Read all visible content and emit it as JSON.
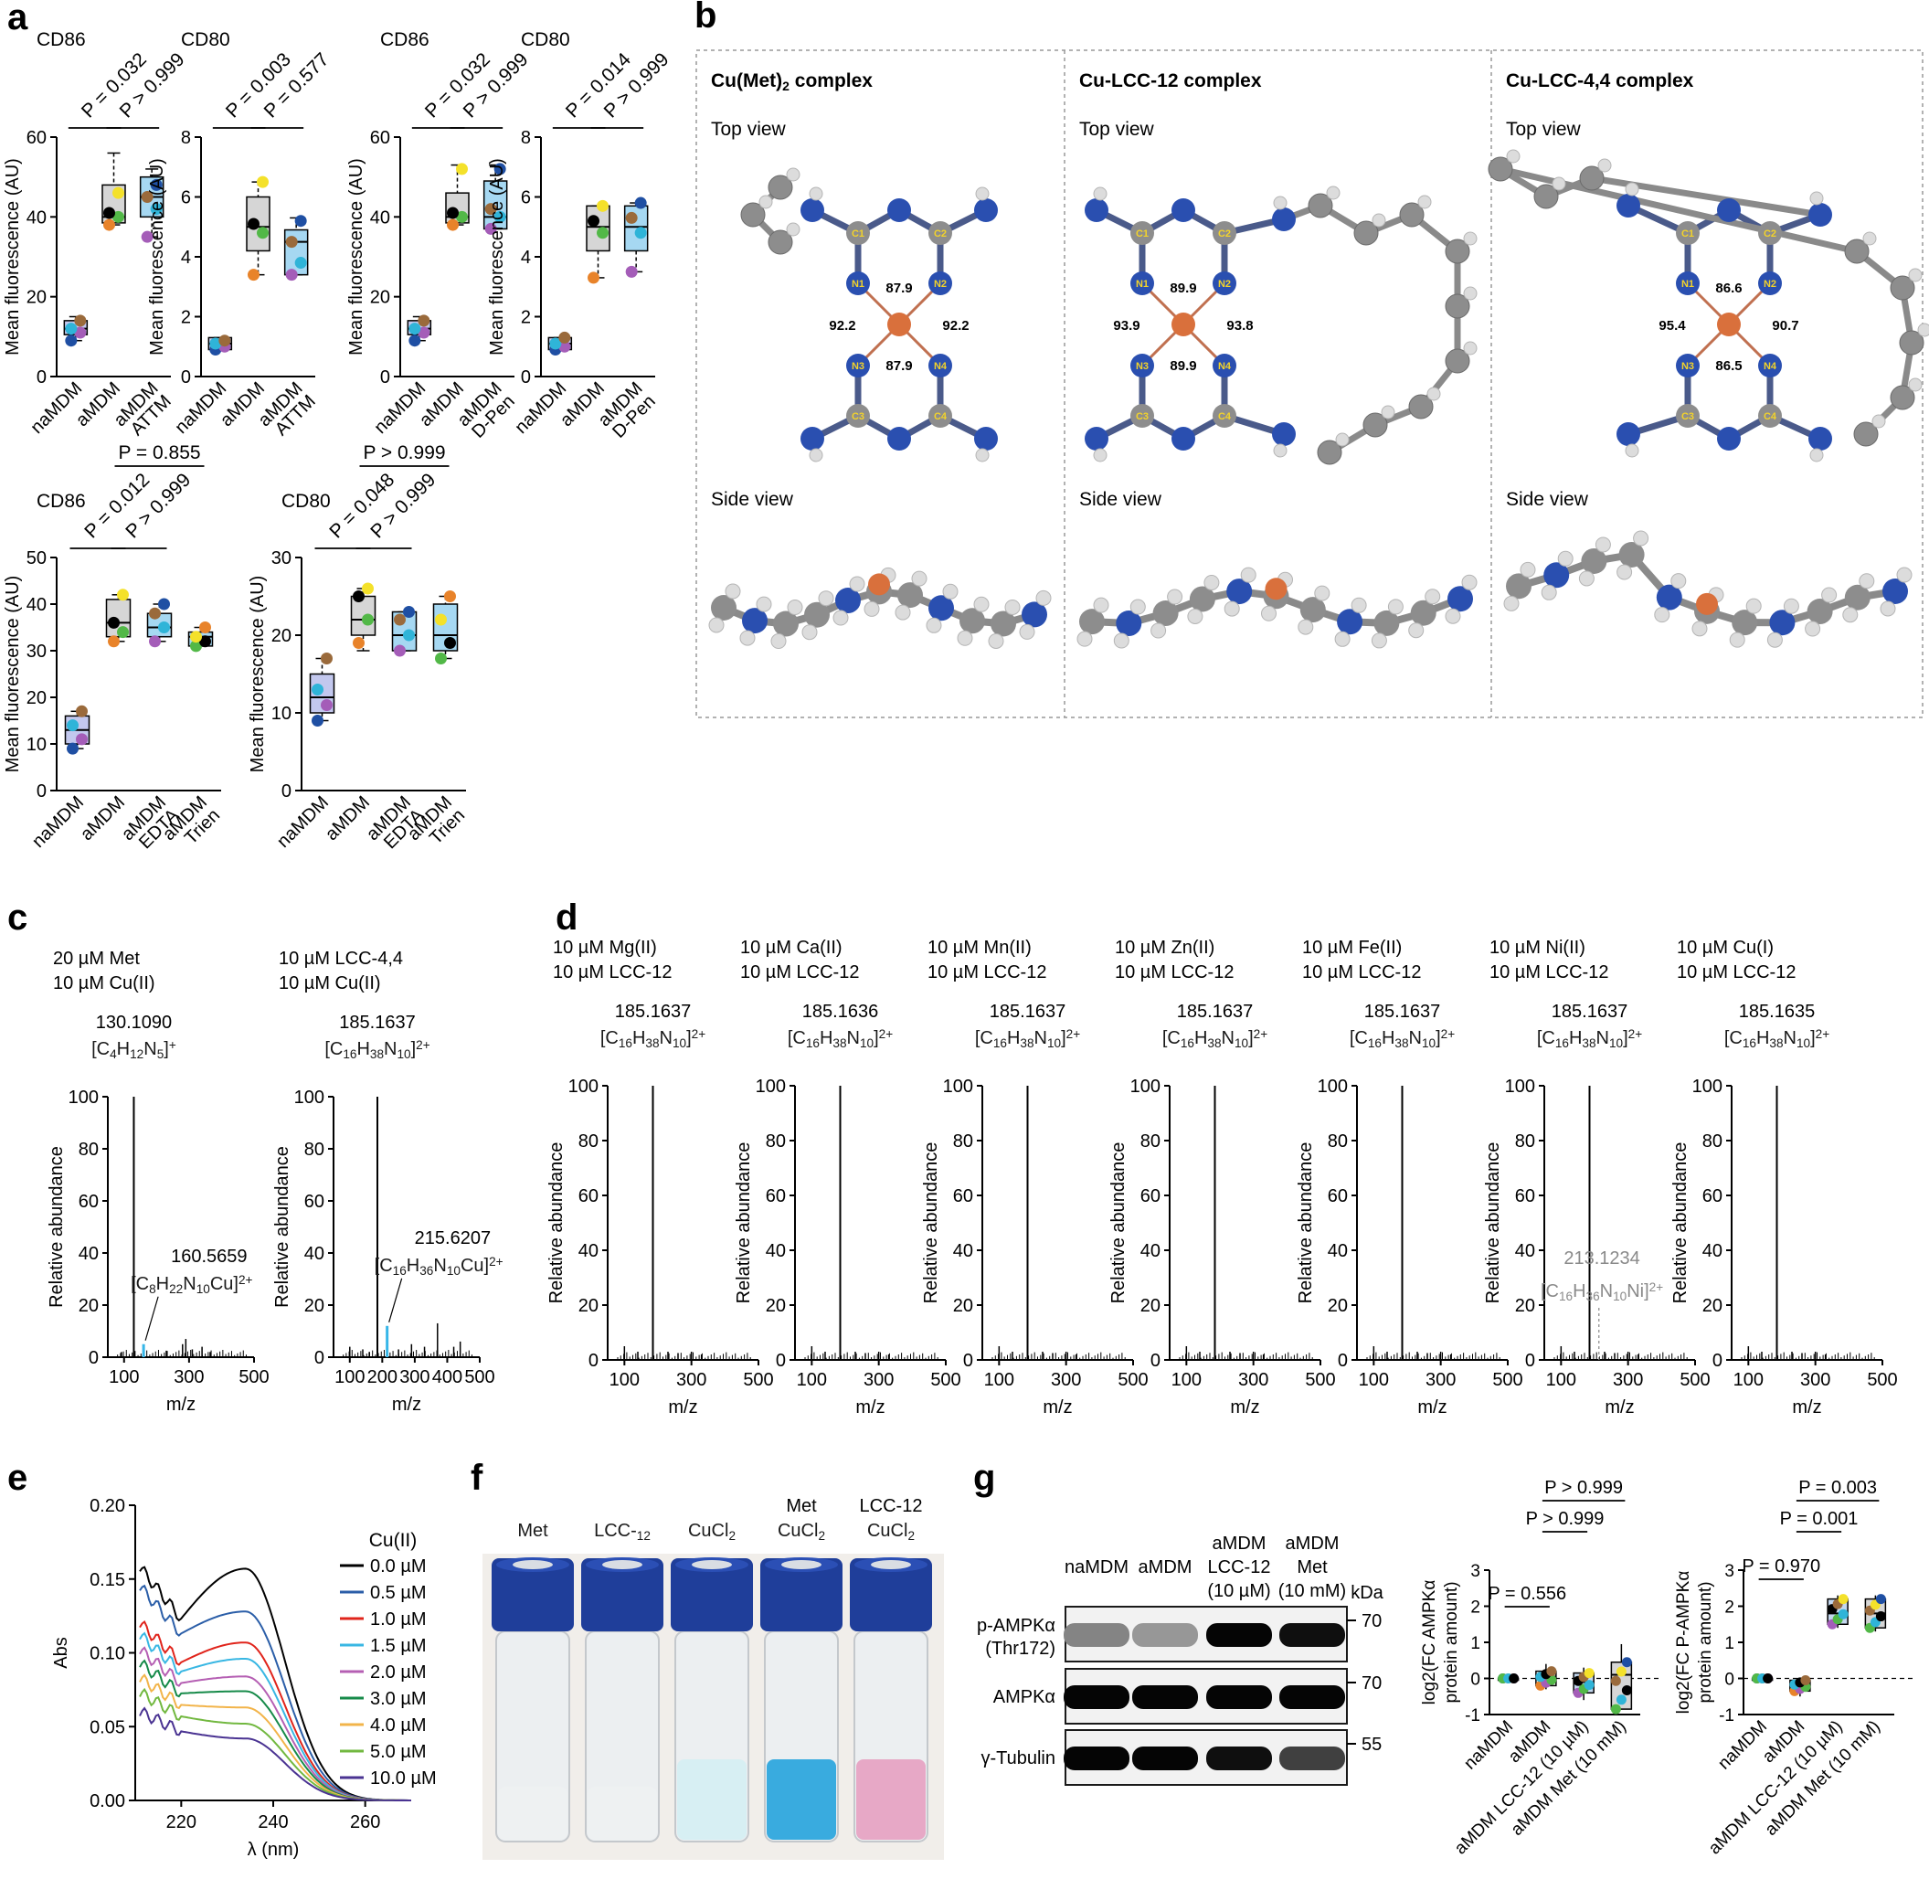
{
  "panels": {
    "a": {
      "label": "a",
      "ylabel": "Mean fluorescence (AU)",
      "plots": [
        {
          "title": "CD86",
          "ymax": 60,
          "ticks": [
            0,
            20,
            40,
            60
          ],
          "categories": [
            "naMDM",
            "aMDM",
            "aMDM ATTM"
          ],
          "medians": [
            12,
            40,
            45
          ],
          "q1": [
            10.5,
            38.5,
            40
          ],
          "q3": [
            14,
            48,
            50
          ],
          "min": [
            9,
            38,
            35
          ],
          "max": [
            15,
            56,
            52
          ],
          "points": [
            [
              9,
              11,
              12,
              14
            ],
            [
              38,
              40,
              41,
              46
            ],
            [
              35,
              42,
              45,
              48
            ]
          ],
          "p_values": [
            "P = 0.032",
            "P > 0.999"
          ],
          "box_colors": [
            "#c3c8ee",
            "#d6d6d6",
            "#a6d8f2"
          ]
        },
        {
          "title": "CD80",
          "ymax": 8,
          "ticks": [
            0,
            2,
            4,
            6,
            8
          ],
          "categories": [
            "naMDM",
            "aMDM",
            "aMDM ATTM"
          ],
          "medians": [
            1.1,
            5,
            4.5
          ],
          "q1": [
            0.9,
            4.2,
            3.4
          ],
          "q3": [
            1.3,
            6,
            4.9
          ],
          "min": [
            0.9,
            3.4,
            3.4
          ],
          "max": [
            1.3,
            6.5,
            5.3
          ],
          "points": [
            [
              0.9,
              1,
              1.1,
              1.2
            ],
            [
              3.4,
              4.8,
              5.1,
              6.5
            ],
            [
              3.4,
              3.8,
              4.5,
              5.2
            ]
          ],
          "p_values": [
            "P = 0.003",
            "P = 0.577"
          ],
          "box_colors": [
            "#c3c8ee",
            "#d6d6d6",
            "#a6d8f2"
          ]
        },
        {
          "title": "CD86",
          "ymax": 60,
          "ticks": [
            0,
            20,
            40,
            60
          ],
          "categories": [
            "naMDM",
            "aMDM",
            "aMDM D-Pen"
          ],
          "medians": [
            12,
            40,
            40
          ],
          "q1": [
            10.5,
            38.5,
            37
          ],
          "q3": [
            14,
            46,
            49
          ],
          "min": [
            9,
            38,
            37
          ],
          "max": [
            15,
            53,
            53
          ],
          "points": [
            [
              9,
              11,
              12,
              14
            ],
            [
              38,
              40,
              41,
              52
            ],
            [
              37,
              40,
              42,
              52
            ]
          ],
          "p_values": [
            "P = 0.032",
            "P > 0.999"
          ],
          "box_colors": [
            "#c3c8ee",
            "#d6d6d6",
            "#a6d8f2"
          ]
        },
        {
          "title": "CD80",
          "ymax": 8,
          "ticks": [
            0,
            2,
            4,
            6,
            8
          ],
          "categories": [
            "naMDM",
            "aMDM",
            "aMDM D-Pen"
          ],
          "medians": [
            1.1,
            5,
            5
          ],
          "q1": [
            0.9,
            4.2,
            4.2
          ],
          "q3": [
            1.3,
            5.7,
            5.7
          ],
          "min": [
            0.9,
            3.3,
            3.5
          ],
          "max": [
            1.3,
            5.7,
            5.8
          ],
          "points": [
            [
              0.9,
              1,
              1.1,
              1.3
            ],
            [
              3.3,
              4.8,
              5.2,
              5.7
            ],
            [
              3.5,
              4.8,
              5.3,
              5.8
            ]
          ],
          "p_values": [
            "P = 0.014",
            "P > 0.999"
          ],
          "box_colors": [
            "#c3c8ee",
            "#d6d6d6",
            "#a6d8f2"
          ]
        },
        {
          "title": "CD86",
          "ymax": 50,
          "ticks": [
            0,
            10,
            20,
            30,
            40,
            50
          ],
          "categories": [
            "naMDM",
            "aMDM",
            "aMDM EDTA",
            "aMDM Trien"
          ],
          "medians": [
            13,
            36,
            35,
            33
          ],
          "q1": [
            10,
            33,
            33,
            31
          ],
          "q3": [
            16,
            41,
            38,
            34
          ],
          "min": [
            9,
            32,
            32,
            31
          ],
          "max": [
            17,
            42,
            40,
            35
          ],
          "points": [
            [
              9,
              11,
              14,
              17
            ],
            [
              32,
              34,
              36,
              42
            ],
            [
              32,
              35,
              38,
              40
            ],
            [
              31,
              32,
              33,
              35
            ]
          ],
          "p_values": [
            "P = 0.012",
            "P > 0.999",
            "P = 0.855"
          ],
          "box_colors": [
            "#c3c8ee",
            "#d6d6d6",
            "#a6d8f2",
            "#a6d8f2"
          ]
        },
        {
          "title": "CD80",
          "ymax": 30,
          "ticks": [
            0,
            10,
            20,
            30
          ],
          "categories": [
            "naMDM",
            "aMDM",
            "aMDM EDTA",
            "aMDM Trien"
          ],
          "medians": [
            12,
            22,
            20,
            20
          ],
          "q1": [
            10,
            20,
            18,
            18
          ],
          "q3": [
            15,
            25,
            23,
            24
          ],
          "min": [
            9,
            18,
            18,
            17
          ],
          "max": [
            17,
            26,
            23,
            25
          ],
          "points": [
            [
              9,
              11,
              13,
              17
            ],
            [
              19,
              22,
              25,
              26
            ],
            [
              18,
              20,
              22,
              23
            ],
            [
              17,
              19,
              22,
              25
            ]
          ],
          "p_values": [
            "P = 0.048",
            "P > 0.999",
            "P > 0.999"
          ],
          "box_colors": [
            "#c3c8ee",
            "#d6d6d6",
            "#a6d8f2",
            "#a6d8f2"
          ]
        }
      ]
    },
    "b": {
      "label": "b",
      "complexes": [
        {
          "title_prefix": "Cu(Met)",
          "title_sub": "2",
          "title_suffix": " complex",
          "top": "Top view",
          "side": "Side view",
          "angles": [
            "87.9",
            "92.2",
            "92.2",
            "87.9"
          ],
          "atoms": [
            "C1",
            "C2",
            "N1",
            "N2",
            "N3",
            "N4",
            "C3",
            "C4"
          ]
        },
        {
          "title_prefix": "Cu-LCC-12 complex",
          "title_sub": "",
          "title_suffix": "",
          "top": "Top view",
          "side": "Side view",
          "angles": [
            "89.9",
            "93.9",
            "93.8",
            "89.9"
          ],
          "atoms": [
            "C1",
            "C2",
            "N1",
            "N2",
            "N3",
            "N4",
            "C3",
            "C4"
          ]
        },
        {
          "title_prefix": "Cu-LCC-4,4 complex",
          "title_sub": "",
          "title_suffix": "",
          "top": "Top view",
          "side": "Side view",
          "angles": [
            "86.6",
            "95.4",
            "90.7",
            "86.5"
          ],
          "atoms": [
            "C1",
            "C2",
            "N1",
            "N2",
            "N3",
            "N4",
            "C3",
            "C4"
          ]
        }
      ]
    },
    "c": {
      "label": "c",
      "ylabel": "Relative abundance",
      "xlabel": "m/z",
      "spectra": [
        {
          "cond1": "20 µM Met",
          "cond2": "10 µM Cu(II)",
          "peak_mz": "130.1090",
          "formula": "[C4H12N5]+",
          "xticks": [
            100,
            300,
            500
          ],
          "main_peak": 130,
          "secondary": {
            "mz": 160,
            "height": 5,
            "label": "160.5659",
            "formula": "[C8H22N10Cu]2+",
            "color": "#36b6e8"
          },
          "minor": [
            [
              92,
              2
            ],
            [
              230,
              2.5
            ],
            [
              280,
              5
            ],
            [
              290,
              7
            ],
            [
              310,
              3
            ],
            [
              340,
              4
            ],
            [
              365,
              2
            ]
          ]
        },
        {
          "cond1": "10 µM LCC-4,4",
          "cond2": "10 µM Cu(II)",
          "peak_mz": "185.1637",
          "formula": "[C16H38N10]2+",
          "xticks": [
            100,
            200,
            300,
            400,
            500
          ],
          "main_peak": 185,
          "secondary": {
            "mz": 215,
            "height": 12,
            "label": "215.6207",
            "formula": "[C16H36N10Cu]2+",
            "color": "#36b6e8"
          },
          "minor": [
            [
              100,
              4
            ],
            [
              140,
              3
            ],
            [
              160,
              2
            ],
            [
              250,
              3
            ],
            [
              290,
              5
            ],
            [
              330,
              4
            ],
            [
              370,
              13
            ],
            [
              420,
              4
            ],
            [
              440,
              6
            ]
          ]
        }
      ]
    },
    "d": {
      "label": "d",
      "spectra": [
        {
          "cond1": "10 µM Mg(II)",
          "cond2": "10 µM LCC-12",
          "peak_mz": "185.1637",
          "formula": "[C16H38N10]2+"
        },
        {
          "cond1": "10 µM Ca(II)",
          "cond2": "10 µM LCC-12",
          "peak_mz": "185.1636",
          "formula": "[C16H38N10]2+"
        },
        {
          "cond1": "10 µM Mn(II)",
          "cond2": "10 µM LCC-12",
          "peak_mz": "185.1637",
          "formula": "[C16H38N10]2+"
        },
        {
          "cond1": "10 µM Zn(II)",
          "cond2": "10 µM LCC-12",
          "peak_mz": "185.1637",
          "formula": "[C16H38N10]2+"
        },
        {
          "cond1": "10 µM Fe(II)",
          "cond2": "10 µM LCC-12",
          "peak_mz": "185.1637",
          "formula": "[C16H38N10]2+"
        },
        {
          "cond1": "10 µM Ni(II)",
          "cond2": "10 µM LCC-12",
          "peak_mz": "185.1637",
          "formula": "[C16H38N10]2+",
          "ni_label": "213.1234",
          "ni_formula": "[C16H36N10Ni]2+"
        },
        {
          "cond1": "10 µM Cu(I)",
          "cond2": "10 µM LCC-12",
          "peak_mz": "185.1635",
          "formula": "[C16H38N10]2+"
        }
      ]
    },
    "e": {
      "label": "e",
      "ylabel": "Abs",
      "xlabel": "λ (nm)",
      "legend_title": "Cu(II)",
      "yticks": [
        "0.00",
        "0.05",
        "0.10",
        "0.15",
        "0.20"
      ],
      "xticks": [
        "220",
        "240",
        "260"
      ],
      "series": [
        {
          "name": "0.0 µM",
          "color": "#000000",
          "base": 0.158,
          "peak": 0.157
        },
        {
          "name": "0.5 µM",
          "color": "#2b5ea8",
          "base": 0.145,
          "peak": 0.128
        },
        {
          "name": "1.0 µM",
          "color": "#e0241b",
          "base": 0.12,
          "peak": 0.107
        },
        {
          "name": "1.5 µM",
          "color": "#39b7e3",
          "base": 0.112,
          "peak": 0.096
        },
        {
          "name": "2.0 µM",
          "color": "#b55fb3",
          "base": 0.102,
          "peak": 0.084
        },
        {
          "name": "3.0 µM",
          "color": "#168a49",
          "base": 0.093,
          "peak": 0.074
        },
        {
          "name": "4.0 µM",
          "color": "#f2b44a",
          "base": 0.083,
          "peak": 0.063
        },
        {
          "name": "5.0 µM",
          "color": "#72b840",
          "base": 0.073,
          "peak": 0.052
        },
        {
          "name": "10.0 µM",
          "color": "#4a3392",
          "base": 0.06,
          "peak": 0.042
        }
      ]
    },
    "f": {
      "label": "f",
      "vials": [
        {
          "line1": "",
          "line2": "Met",
          "liquid": "#eef0f1"
        },
        {
          "line1": "",
          "line2": "LCC-12",
          "liquid": "#eef0f1"
        },
        {
          "line1": "",
          "line2": "CuCl2",
          "liquid": "#d6eef2"
        },
        {
          "line1": "Met",
          "line2": "CuCl2",
          "liquid": "#2fa6dd"
        },
        {
          "line1": "LCC-12",
          "line2": "CuCl2",
          "liquid": "#e7a3c3"
        }
      ]
    },
    "g": {
      "label": "g",
      "lanes": [
        {
          "l1": "",
          "l2": "naMDM",
          "l3": ""
        },
        {
          "l1": "",
          "l2": "aMDM",
          "l3": ""
        },
        {
          "l1": "aMDM",
          "l2": "LCC-12",
          "l3": "(10 µM)"
        },
        {
          "l1": "aMDM",
          "l2": "Met",
          "l3": "(10 mM)"
        }
      ],
      "kda_label": "kDa",
      "rows": [
        {
          "name": "p-AMPKα",
          "name2": "(Thr172)",
          "kda": "70",
          "intensity": [
            0.35,
            0.25,
            1,
            0.95
          ]
        },
        {
          "name": "AMPKα",
          "name2": "",
          "kda": "70",
          "intensity": [
            1,
            1,
            1,
            1
          ]
        },
        {
          "name": "γ-Tubulin",
          "name2": "",
          "kda": "55",
          "intensity": [
            1,
            1,
            0.95,
            0.7
          ]
        }
      ],
      "quant": [
        {
          "ylabel1": "log2(FC AMPKα",
          "ylabel2": "protein amount)",
          "yticks": [
            -1,
            0,
            1,
            2,
            3
          ],
          "categories": [
            "naMDM",
            "aMDM",
            "aMDM LCC-12 (10 µM)",
            "aMDM Met (10 mM)"
          ],
          "medians": [
            0,
            0.05,
            -0.1,
            0.1
          ],
          "q1": [
            0,
            -0.2,
            -0.4,
            -0.85
          ],
          "q3": [
            0,
            0.2,
            0.15,
            0.45
          ],
          "min": [
            0,
            -0.3,
            -0.6,
            -0.85
          ],
          "max": [
            0,
            0.4,
            0.3,
            0.95
          ],
          "p_values": [
            "P = 0.556",
            "P > 0.999",
            "P > 0.999"
          ]
        },
        {
          "ylabel1": "log2(FC P-AMPKα",
          "ylabel2": "protein amount)",
          "yticks": [
            -1,
            0,
            1,
            2,
            3
          ],
          "categories": [
            "naMDM",
            "aMDM",
            "aMDM LCC-12 (10 µM)",
            "aMDM Met (10 mM)"
          ],
          "medians": [
            0,
            -0.2,
            1.8,
            1.8
          ],
          "q1": [
            0,
            -0.35,
            1.5,
            1.4
          ],
          "q3": [
            0,
            -0.05,
            2.2,
            2.2
          ],
          "min": [
            0,
            -0.5,
            1.4,
            1.3
          ],
          "max": [
            0,
            0,
            2.3,
            2.3
          ],
          "p_values": [
            "P = 0.970",
            "P = 0.001",
            "P = 0.003"
          ]
        }
      ]
    }
  }
}
